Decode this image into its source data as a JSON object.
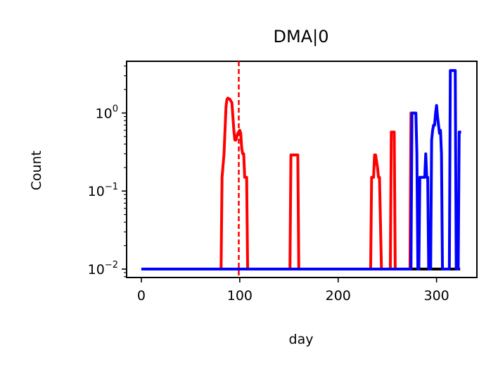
{
  "chart_data": {
    "type": "line",
    "title": "DMA|0",
    "xlabel": "day",
    "ylabel": "Count",
    "xlim": [
      -15,
      341
    ],
    "ylim": [
      0.0078,
      4.6
    ],
    "yscale": "log",
    "xticks": [
      0,
      100,
      200,
      300
    ],
    "yticks": [
      0.01,
      0.1,
      1
    ],
    "ytick_labels": [
      {
        "base": "10",
        "exp": "−2"
      },
      {
        "base": "10",
        "exp": "−1"
      },
      {
        "base": "10",
        "exp": "0"
      }
    ],
    "grid": false,
    "legend": "none",
    "vline": {
      "x": 99,
      "color": "#ff0000",
      "style": "dashed"
    },
    "series": [
      {
        "color": "#000000",
        "x": [
          0,
          324
        ],
        "y": [
          0.01,
          0.01
        ]
      },
      {
        "color": "#ff0000",
        "x": [
          0,
          81,
          82,
          84,
          86,
          87,
          88,
          90,
          92,
          93,
          94,
          95,
          96,
          98,
          100,
          101,
          102,
          103,
          104,
          105,
          106,
          107,
          108,
          150,
          151,
          152,
          158,
          159,
          160,
          232,
          233,
          234,
          236,
          237,
          238,
          240,
          241,
          242,
          244,
          245,
          246,
          252,
          253,
          254,
          256,
          257,
          258,
          272,
          273,
          274,
          275,
          276
        ],
        "y": [
          0.01,
          0.01,
          0.15,
          0.3,
          1.2,
          1.5,
          1.55,
          1.5,
          1.35,
          0.9,
          0.6,
          0.45,
          0.45,
          0.55,
          0.6,
          0.55,
          0.35,
          0.3,
          0.3,
          0.15,
          0.15,
          0.15,
          0.01,
          0.01,
          0.01,
          0.29,
          0.29,
          0.29,
          0.01,
          0.01,
          0.01,
          0.15,
          0.15,
          0.29,
          0.29,
          0.2,
          0.15,
          0.15,
          0.01,
          0.01,
          0.01,
          0.01,
          0.01,
          0.57,
          0.57,
          0.57,
          0.01,
          0.01,
          0.01,
          1.0,
          1.0,
          1.0
        ]
      },
      {
        "color": "#0000ff",
        "x": [
          0,
          274,
          275,
          276,
          278,
          279,
          280,
          281,
          282,
          283,
          284,
          286,
          288,
          289,
          290,
          291,
          292,
          293,
          294,
          295,
          296,
          297,
          298,
          299,
          300,
          301,
          302,
          303,
          304,
          305,
          306,
          308,
          309,
          310,
          311,
          312,
          313,
          314,
          315,
          316,
          317,
          318,
          319,
          320,
          321,
          322,
          323,
          324,
          325
        ],
        "y": [
          0.01,
          0.01,
          1.0,
          1.0,
          1.0,
          1.0,
          0.3,
          0.01,
          0.01,
          0.15,
          0.15,
          0.15,
          0.15,
          0.3,
          0.15,
          0.15,
          0.01,
          0.01,
          0.01,
          0.45,
          0.6,
          0.7,
          0.7,
          1.0,
          1.25,
          0.9,
          0.7,
          0.55,
          0.6,
          0.3,
          0.01,
          0.01,
          0.01,
          0.01,
          0.01,
          0.01,
          0.01,
          3.5,
          3.5,
          3.5,
          3.5,
          3.5,
          3.5,
          0.01,
          0.01,
          0.01,
          0.57,
          0.57,
          0.57
        ]
      }
    ]
  }
}
